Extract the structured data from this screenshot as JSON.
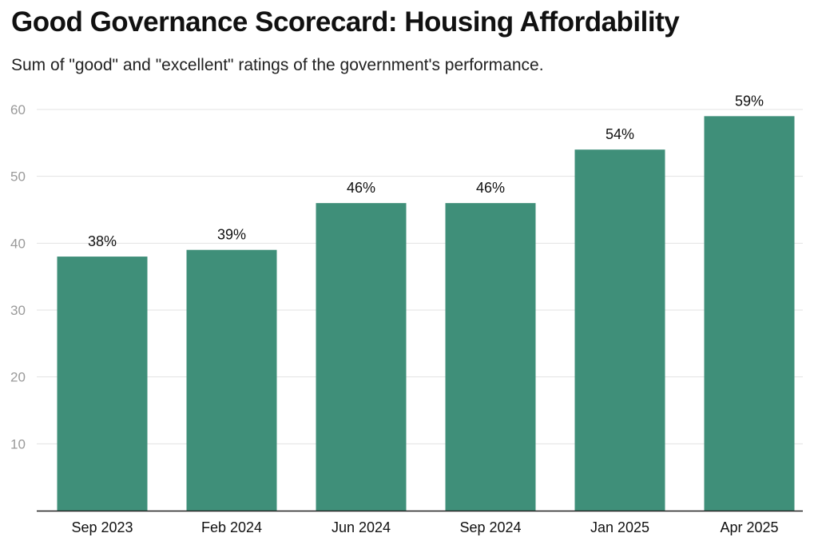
{
  "title": "Good Governance Scorecard: Housing Affordability",
  "subtitle": "Sum of \"good\" and \"excellent\" ratings of the government's performance.",
  "chart_data": {
    "type": "bar",
    "title": "Good Governance Scorecard: Housing Affordability",
    "subtitle": "Sum of \"good\" and \"excellent\" ratings of the government's performance.",
    "categories": [
      "Sep 2023",
      "Feb 2024",
      "Jun 2024",
      "Sep 2024",
      "Jan 2025",
      "Apr 2025"
    ],
    "values": [
      38,
      39,
      46,
      46,
      54,
      59
    ],
    "data_labels": [
      "38%",
      "39%",
      "46%",
      "46%",
      "54%",
      "59%"
    ],
    "xlabel": "",
    "ylabel": "",
    "ylim": [
      0,
      60
    ],
    "yticks": [
      10,
      20,
      30,
      40,
      50,
      60
    ],
    "grid": true,
    "legend": "none",
    "bar_color": "#3f8f79",
    "grid_color": "#e3e3e3",
    "axis_color": "#222222"
  }
}
